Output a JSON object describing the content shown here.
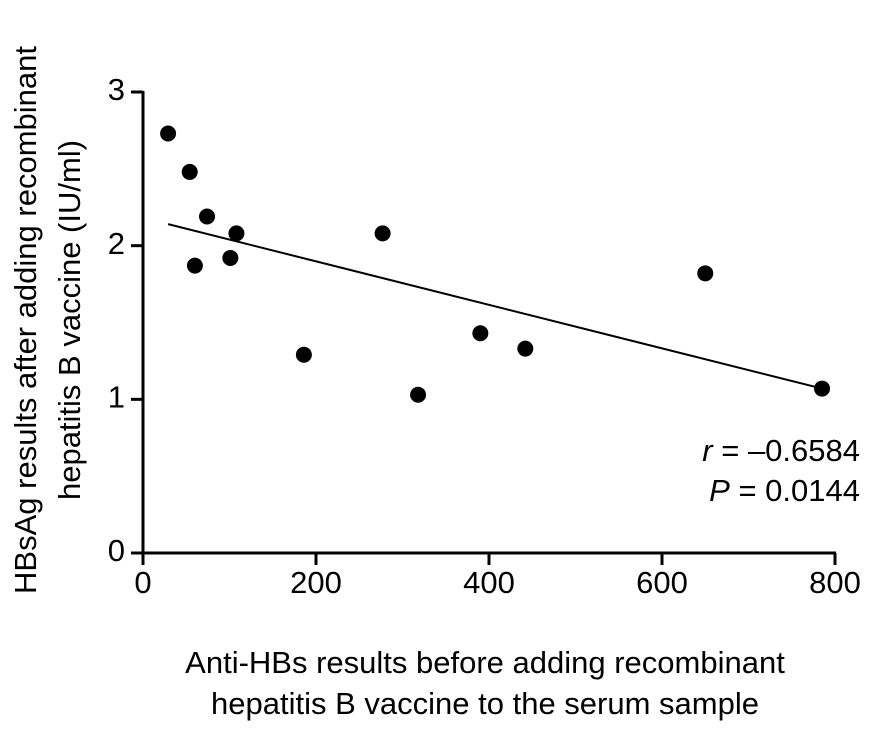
{
  "chart_data": {
    "type": "scatter",
    "x_label": [
      "Anti-HBs results before adding recombinant",
      "hepatitis B vaccine to the serum sample"
    ],
    "y_label": [
      "HBsAg results after adding recombinant",
      "hepatitis B vaccine (IU/ml)"
    ],
    "x": [
      29,
      54,
      74,
      108,
      60,
      101,
      186,
      277,
      318,
      390,
      442,
      650,
      785
    ],
    "values": [
      2.73,
      2.48,
      2.19,
      2.08,
      1.87,
      1.92,
      1.29,
      2.08,
      1.03,
      1.43,
      1.33,
      1.82,
      1.07
    ],
    "color": "#000000",
    "trend": {
      "x": [
        29,
        785
      ],
      "y": [
        2.14,
        1.07
      ]
    },
    "xlim": [
      0,
      800
    ],
    "xticks": [
      0,
      200,
      400,
      600,
      800
    ],
    "ylim": [
      0,
      3
    ],
    "yticks": [
      0,
      1,
      2,
      3
    ],
    "annotations": [
      {
        "symbol": "r",
        "text": " = –0.6584"
      },
      {
        "symbol": "P",
        "text": " = 0.0144"
      }
    ]
  }
}
